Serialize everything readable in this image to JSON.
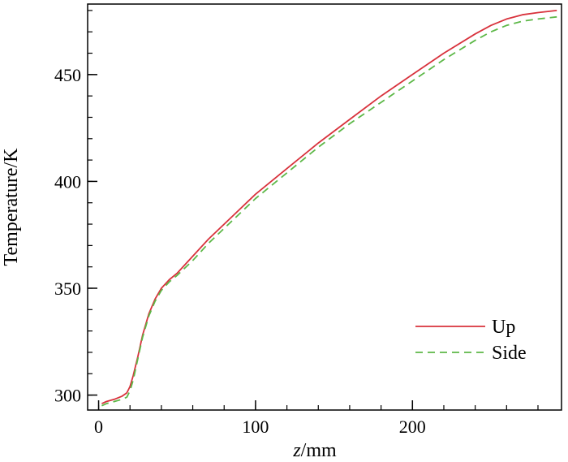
{
  "chart_data": {
    "type": "line",
    "title": "",
    "xlabel": {
      "italic": "z",
      "rest": "/mm"
    },
    "ylabel": "Temperature/K",
    "xlim": [
      -7,
      295
    ],
    "ylim": [
      293,
      483
    ],
    "x_ticks": [
      0,
      100,
      200
    ],
    "y_ticks": [
      300,
      350,
      400,
      450
    ],
    "x_minor_step": 20,
    "y_minor_step": 10,
    "grid": false,
    "legend_position": "lower-right",
    "series": [
      {
        "name": "Up",
        "color": "#d8323c",
        "dash": "solid",
        "x": [
          2,
          5,
          10,
          15,
          18,
          20,
          22,
          25,
          28,
          32,
          36,
          40,
          45,
          50,
          60,
          70,
          80,
          90,
          100,
          120,
          140,
          160,
          180,
          200,
          220,
          240,
          250,
          260,
          270,
          280,
          292
        ],
        "y": [
          296,
          297,
          298,
          299.5,
          301,
          304,
          309,
          318,
          328,
          338,
          345,
          350,
          354,
          357,
          365,
          373,
          380,
          387,
          394,
          406,
          418,
          429,
          440,
          450,
          460,
          469,
          473,
          476,
          478,
          479,
          480
        ]
      },
      {
        "name": "Side",
        "color": "#5db848",
        "dash": "dashed",
        "x": [
          2,
          5,
          10,
          15,
          18,
          20,
          22,
          25,
          28,
          32,
          36,
          40,
          45,
          50,
          60,
          70,
          80,
          90,
          100,
          120,
          140,
          160,
          180,
          200,
          220,
          240,
          250,
          260,
          270,
          280,
          292
        ],
        "y": [
          295,
          296,
          297,
          298,
          299,
          302,
          307,
          317,
          327,
          337,
          344,
          349,
          353,
          356,
          363,
          371,
          378,
          385,
          392,
          404,
          416,
          427,
          437,
          447,
          457,
          466,
          470,
          473,
          475,
          476,
          477
        ]
      }
    ]
  }
}
